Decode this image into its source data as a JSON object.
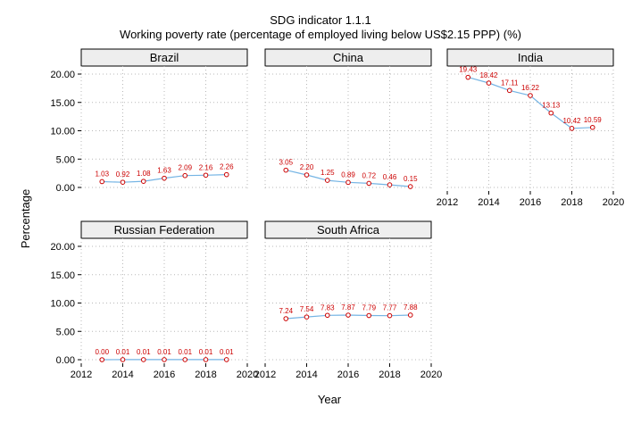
{
  "title": "SDG indicator 1.1.1",
  "subtitle": "Working poverty rate (percentage of employed living below US$2.15 PPP) (%)",
  "xlabel": "Year",
  "ylabel": "Percentage",
  "colors": {
    "line": "#74b4e4",
    "point": "#cc0000",
    "label": "#cc0000",
    "grid": "#b8b8b8",
    "strip": "#eeeeee"
  },
  "chart_data": {
    "type": "line",
    "layout": "faceted small multiples, 3 columns x 2 rows",
    "x_ticks": [
      2012,
      2014,
      2016,
      2018,
      2020
    ],
    "y_ticks": [
      "0.00",
      "5.00",
      "10.00",
      "15.00",
      "20.00"
    ],
    "xlim": [
      2012,
      2020
    ],
    "ylim": [
      0,
      20
    ],
    "grid": true,
    "panels": [
      {
        "name": "Brazil",
        "x": [
          2013,
          2014,
          2015,
          2016,
          2017,
          2018,
          2019
        ],
        "values": [
          1.03,
          0.92,
          1.08,
          1.63,
          2.09,
          2.16,
          2.26
        ],
        "labels": [
          "1.03",
          "0.92",
          "1.08",
          "1.63",
          "2.09",
          "2.16",
          "2.26"
        ]
      },
      {
        "name": "China",
        "x": [
          2013,
          2014,
          2015,
          2016,
          2017,
          2018,
          2019
        ],
        "values": [
          3.05,
          2.2,
          1.25,
          0.89,
          0.72,
          0.46,
          0.15
        ],
        "labels": [
          "3.05",
          "2.20",
          "1.25",
          "0.89",
          "0.72",
          "0.46",
          "0.15"
        ]
      },
      {
        "name": "India",
        "x": [
          2013,
          2014,
          2015,
          2016,
          2017,
          2018,
          2019
        ],
        "values": [
          19.43,
          18.42,
          17.11,
          16.22,
          13.13,
          10.42,
          10.59
        ],
        "labels": [
          "19.43",
          "18.42",
          "17.11",
          "16.22",
          "13.13",
          "10.42",
          "10.59"
        ]
      },
      {
        "name": "Russian Federation",
        "x": [
          2013,
          2014,
          2015,
          2016,
          2017,
          2018,
          2019
        ],
        "values": [
          0.0,
          0.01,
          0.01,
          0.01,
          0.01,
          0.01,
          0.01
        ],
        "labels": [
          "0.00",
          "0.01",
          "0.01",
          "0.01",
          "0.01",
          "0.01",
          "0.01"
        ]
      },
      {
        "name": "South Africa",
        "x": [
          2013,
          2014,
          2015,
          2016,
          2017,
          2018,
          2019
        ],
        "values": [
          7.24,
          7.54,
          7.83,
          7.87,
          7.79,
          7.77,
          7.88
        ],
        "labels": [
          "7.24",
          "7.54",
          "7.83",
          "7.87",
          "7.79",
          "7.77",
          "7.88"
        ]
      }
    ]
  }
}
